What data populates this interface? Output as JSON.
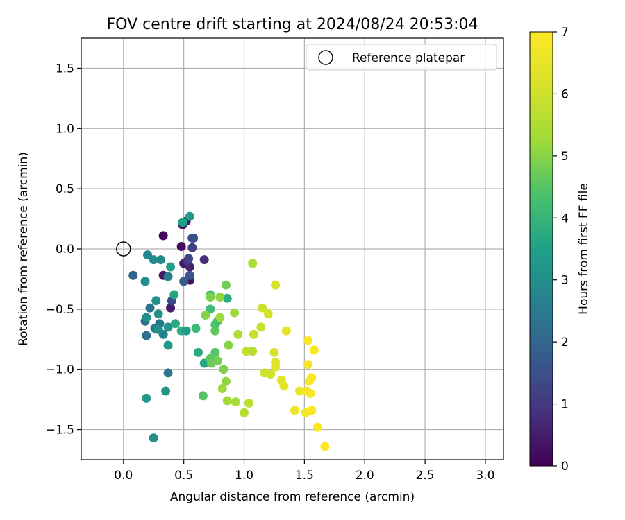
{
  "chart_data": {
    "type": "scatter",
    "title": "FOV centre drift starting at 2024/08/24 20:53:04",
    "xlabel": "Angular distance from reference (arcmin)",
    "ylabel": "Rotation from reference (arcmin)",
    "xlim": [
      -0.35,
      3.15
    ],
    "ylim": [
      -1.75,
      1.75
    ],
    "xticks": [
      0.0,
      0.5,
      1.0,
      1.5,
      2.0,
      2.5,
      3.0
    ],
    "xtick_labels": [
      "0.0",
      "0.5",
      "1.0",
      "1.5",
      "2.0",
      "2.5",
      "3.0"
    ],
    "yticks": [
      -1.5,
      -1.0,
      -0.5,
      0.0,
      0.5,
      1.0,
      1.5
    ],
    "ytick_labels": [
      "−1.5",
      "−1.0",
      "−0.5",
      "0.0",
      "0.5",
      "1.0",
      "1.5"
    ],
    "grid": true,
    "legend": {
      "label": "Reference platepar",
      "placement": "top-right"
    },
    "reference_point": {
      "x": 0.0,
      "y": 0.0
    },
    "colorbar": {
      "label": "Hours from first FF file",
      "min": 0,
      "max": 7,
      "ticks": [
        0,
        1,
        2,
        3,
        4,
        5,
        6,
        7
      ],
      "tick_labels": [
        "0",
        "1",
        "2",
        "3",
        "4",
        "5",
        "6",
        "7"
      ],
      "colormap": "viridis"
    },
    "series": [
      {
        "name": "FOV centre",
        "points": [
          {
            "x": 0.33,
            "y": 0.11,
            "t": 0.1
          },
          {
            "x": 0.48,
            "y": 0.02,
            "t": 0.2
          },
          {
            "x": 0.49,
            "y": 0.2,
            "t": 0.3
          },
          {
            "x": 0.5,
            "y": -0.12,
            "t": 0.4
          },
          {
            "x": 0.52,
            "y": 0.23,
            "t": 0.5
          },
          {
            "x": 0.55,
            "y": -0.26,
            "t": 0.3
          },
          {
            "x": 0.33,
            "y": -0.22,
            "t": 0.4
          },
          {
            "x": 0.39,
            "y": -0.49,
            "t": 0.5
          },
          {
            "x": 0.67,
            "y": -0.09,
            "t": 0.8
          },
          {
            "x": 0.55,
            "y": -0.15,
            "t": 0.6
          },
          {
            "x": 0.53,
            "y": -0.1,
            "t": 0.9
          },
          {
            "x": 0.57,
            "y": 0.09,
            "t": 1.1
          },
          {
            "x": 0.57,
            "y": 0.01,
            "t": 1.2
          },
          {
            "x": 0.54,
            "y": -0.08,
            "t": 1.3
          },
          {
            "x": 0.58,
            "y": 0.09,
            "t": 1.5
          },
          {
            "x": 0.4,
            "y": -0.43,
            "t": 1.4
          },
          {
            "x": 0.55,
            "y": -0.22,
            "t": 1.6
          },
          {
            "x": 0.5,
            "y": -0.27,
            "t": 1.8
          },
          {
            "x": 0.08,
            "y": -0.22,
            "t": 2.0
          },
          {
            "x": 0.18,
            "y": -0.6,
            "t": 2.1
          },
          {
            "x": 0.19,
            "y": -0.72,
            "t": 2.2
          },
          {
            "x": 0.22,
            "y": -0.49,
            "t": 2.3
          },
          {
            "x": 0.3,
            "y": -0.62,
            "t": 2.4
          },
          {
            "x": 0.26,
            "y": -0.66,
            "t": 2.5
          },
          {
            "x": 0.37,
            "y": -1.03,
            "t": 2.4
          },
          {
            "x": 0.37,
            "y": -0.23,
            "t": 2.6
          },
          {
            "x": 0.33,
            "y": -0.71,
            "t": 2.7
          },
          {
            "x": 0.2,
            "y": -0.05,
            "t": 2.8
          },
          {
            "x": 0.25,
            "y": -0.09,
            "t": 2.9
          },
          {
            "x": 0.31,
            "y": -0.09,
            "t": 2.9
          },
          {
            "x": 0.18,
            "y": -0.27,
            "t": 3.0
          },
          {
            "x": 0.27,
            "y": -0.43,
            "t": 3.0
          },
          {
            "x": 0.29,
            "y": -0.54,
            "t": 3.1
          },
          {
            "x": 0.19,
            "y": -0.57,
            "t": 3.0
          },
          {
            "x": 0.29,
            "y": -0.67,
            "t": 3.1
          },
          {
            "x": 0.37,
            "y": -0.65,
            "t": 3.2
          },
          {
            "x": 0.37,
            "y": -0.8,
            "t": 3.3
          },
          {
            "x": 0.35,
            "y": -1.18,
            "t": 3.2
          },
          {
            "x": 0.19,
            "y": -1.24,
            "t": 3.3
          },
          {
            "x": 0.25,
            "y": -1.57,
            "t": 3.1
          },
          {
            "x": 0.55,
            "y": 0.27,
            "t": 3.4
          },
          {
            "x": 0.49,
            "y": 0.22,
            "t": 3.5
          },
          {
            "x": 0.39,
            "y": -0.15,
            "t": 3.5
          },
          {
            "x": 0.42,
            "y": -0.38,
            "t": 3.6
          },
          {
            "x": 0.43,
            "y": -0.62,
            "t": 3.7
          },
          {
            "x": 0.48,
            "y": -0.68,
            "t": 3.8
          },
          {
            "x": 0.52,
            "y": -0.68,
            "t": 3.4
          },
          {
            "x": 0.62,
            "y": -0.86,
            "t": 3.7
          },
          {
            "x": 0.67,
            "y": -0.95,
            "t": 3.6
          },
          {
            "x": 0.86,
            "y": -0.41,
            "t": 3.8
          },
          {
            "x": 0.6,
            "y": -0.66,
            "t": 4.1
          },
          {
            "x": 0.72,
            "y": -0.38,
            "t": 4.3
          },
          {
            "x": 0.72,
            "y": -0.5,
            "t": 4.2
          },
          {
            "x": 0.76,
            "y": -0.63,
            "t": 4.4
          },
          {
            "x": 0.78,
            "y": -0.6,
            "t": 4.3
          },
          {
            "x": 0.76,
            "y": -0.68,
            "t": 4.6
          },
          {
            "x": 0.76,
            "y": -0.86,
            "t": 4.5
          },
          {
            "x": 0.72,
            "y": -0.91,
            "t": 4.6
          },
          {
            "x": 0.73,
            "y": -0.95,
            "t": 4.7
          },
          {
            "x": 0.78,
            "y": -0.93,
            "t": 4.8
          },
          {
            "x": 0.83,
            "y": -1.0,
            "t": 4.9
          },
          {
            "x": 0.66,
            "y": -1.22,
            "t": 4.5
          },
          {
            "x": 0.85,
            "y": -0.3,
            "t": 4.8
          },
          {
            "x": 0.68,
            "y": -0.55,
            "t": 5.0
          },
          {
            "x": 0.72,
            "y": -0.4,
            "t": 4.9
          },
          {
            "x": 0.8,
            "y": -0.4,
            "t": 5.1
          },
          {
            "x": 0.8,
            "y": -0.57,
            "t": 5.2
          },
          {
            "x": 0.87,
            "y": -0.8,
            "t": 5.0
          },
          {
            "x": 0.85,
            "y": -1.1,
            "t": 5.1
          },
          {
            "x": 0.82,
            "y": -1.16,
            "t": 5.2
          },
          {
            "x": 0.86,
            "y": -1.26,
            "t": 5.3
          },
          {
            "x": 0.93,
            "y": -1.27,
            "t": 5.4
          },
          {
            "x": 0.92,
            "y": -0.53,
            "t": 5.2
          },
          {
            "x": 0.95,
            "y": -0.71,
            "t": 5.5
          },
          {
            "x": 1.0,
            "y": -1.36,
            "t": 5.6
          },
          {
            "x": 1.04,
            "y": -1.28,
            "t": 5.7
          },
          {
            "x": 1.02,
            "y": -0.85,
            "t": 5.8
          },
          {
            "x": 1.07,
            "y": -0.85,
            "t": 5.6
          },
          {
            "x": 1.07,
            "y": -0.12,
            "t": 5.5
          },
          {
            "x": 1.08,
            "y": -0.71,
            "t": 5.9
          },
          {
            "x": 1.14,
            "y": -0.65,
            "t": 5.9
          },
          {
            "x": 1.15,
            "y": -0.49,
            "t": 6.0
          },
          {
            "x": 1.2,
            "y": -0.54,
            "t": 6.1
          },
          {
            "x": 1.17,
            "y": -1.03,
            "t": 6.0
          },
          {
            "x": 1.22,
            "y": -1.04,
            "t": 6.1
          },
          {
            "x": 1.26,
            "y": -0.3,
            "t": 6.2
          },
          {
            "x": 1.25,
            "y": -0.86,
            "t": 6.2
          },
          {
            "x": 1.26,
            "y": -0.94,
            "t": 6.3
          },
          {
            "x": 1.26,
            "y": -0.98,
            "t": 6.3
          },
          {
            "x": 1.31,
            "y": -1.09,
            "t": 6.4
          },
          {
            "x": 1.33,
            "y": -1.14,
            "t": 6.4
          },
          {
            "x": 1.35,
            "y": -0.68,
            "t": 6.4
          },
          {
            "x": 1.42,
            "y": -1.34,
            "t": 6.6
          },
          {
            "x": 1.46,
            "y": -1.18,
            "t": 6.6
          },
          {
            "x": 1.51,
            "y": -1.36,
            "t": 6.7
          },
          {
            "x": 1.52,
            "y": -1.18,
            "t": 6.8
          },
          {
            "x": 1.53,
            "y": -0.96,
            "t": 6.8
          },
          {
            "x": 1.53,
            "y": -0.76,
            "t": 6.9
          },
          {
            "x": 1.54,
            "y": -1.1,
            "t": 6.9
          },
          {
            "x": 1.55,
            "y": -1.2,
            "t": 6.9
          },
          {
            "x": 1.56,
            "y": -1.07,
            "t": 6.9
          },
          {
            "x": 1.56,
            "y": -1.34,
            "t": 7.0
          },
          {
            "x": 1.58,
            "y": -0.84,
            "t": 7.0
          },
          {
            "x": 1.61,
            "y": -1.48,
            "t": 7.0
          },
          {
            "x": 1.67,
            "y": -1.64,
            "t": 7.0
          }
        ]
      }
    ]
  }
}
